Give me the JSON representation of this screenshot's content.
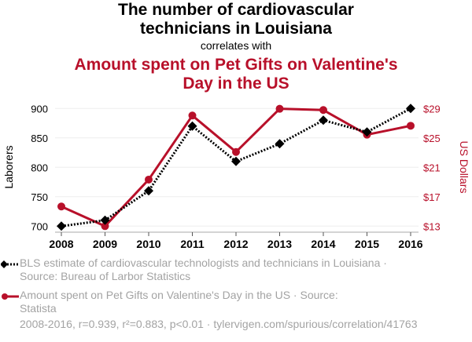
{
  "header": {
    "title_line1": "The number of cardiovascular",
    "title_line2": "technicians in Louisiana",
    "subtitle": "correlates with",
    "title2_line1": "Amount spent on Pet Gifts on Valentine's",
    "title2_line2": "Day in the US"
  },
  "legend": {
    "series1_line1": "BLS estimate of cardiovascular technologists and technicians in Louisiana ·",
    "series1_line2": "Source: Bureau of Larbor Statistics",
    "series2_line1": "Amount spent on Pet Gifts on Valentine's Day in the US · Source:",
    "series2_line2": "Statista"
  },
  "footer": {
    "stats": "2008-2016, r=0.939, r²=0.883, p<0.01 · tylervigen.com/spurious/correlation/41763"
  },
  "colors": {
    "series1": "#000000",
    "series2": "#b8102a",
    "grid": "#eeeeee",
    "muted_text": "#a3a3a3"
  },
  "chart_data": {
    "type": "line",
    "title": "The number of cardiovascular technicians in Louisiana correlates with Amount spent on Pet Gifts on Valentine's Day in the US",
    "x": [
      2008,
      2009,
      2010,
      2011,
      2012,
      2013,
      2014,
      2015,
      2016
    ],
    "x_tick_labels": [
      "2008",
      "2009",
      "2010",
      "2011",
      "2012",
      "2013",
      "2014",
      "2015",
      "2016"
    ],
    "xlabel": "",
    "ylabel": "Laborers",
    "ylabel_right": "US Dollars",
    "ylim": [
      700,
      900
    ],
    "ylim_right": [
      13,
      29
    ],
    "y_ticks": [
      700,
      750,
      800,
      850,
      900
    ],
    "y_tick_labels": [
      "700",
      "750",
      "800",
      "850",
      "900"
    ],
    "y_ticks_right": [
      13,
      17,
      21,
      25,
      29
    ],
    "y_tick_labels_right": [
      "$13",
      "$17",
      "$21",
      "$25",
      "$29"
    ],
    "grid": true,
    "legend_position": "bottom",
    "series": [
      {
        "name": "BLS estimate of cardiovascular technologists and technicians in Louisiana",
        "axis": "left",
        "style": "dotted",
        "marker": "diamond",
        "values": [
          700,
          710,
          760,
          870,
          810,
          840,
          880,
          860,
          900
        ]
      },
      {
        "name": "Amount spent on Pet Gifts on Valentine's Day in the US",
        "axis": "right",
        "style": "solid",
        "marker": "circle",
        "values": [
          15.67,
          13.0,
          19.33,
          28.04,
          23.09,
          28.96,
          28.79,
          25.44,
          26.65
        ]
      }
    ]
  }
}
